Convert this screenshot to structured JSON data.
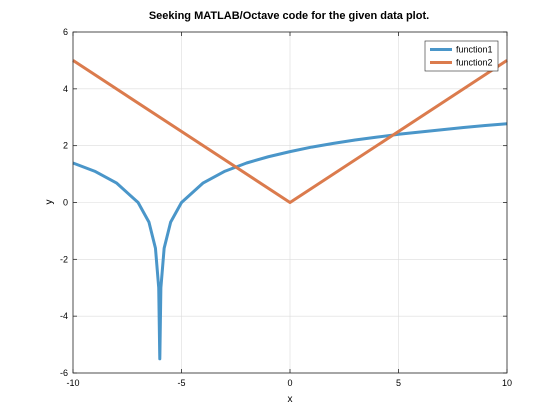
{
  "chart_data": {
    "type": "line",
    "title": "Seeking MATLAB/Octave code for the given data plot.",
    "xlabel": "x",
    "ylabel": "y",
    "xlim": [
      -10,
      10
    ],
    "ylim": [
      -6,
      6
    ],
    "xticks": [
      -10,
      -5,
      0,
      5,
      10
    ],
    "yticks": [
      -6,
      -4,
      -2,
      0,
      2,
      4,
      6
    ],
    "xtick_labels": [
      "-10",
      "-5",
      "0",
      "5",
      "10"
    ],
    "ytick_labels": [
      "-6",
      "-4",
      "-2",
      "0",
      "2",
      "4",
      "6"
    ],
    "grid": true,
    "legend_position": "top-right",
    "series": [
      {
        "name": "function1",
        "color": "#4a96c9",
        "x": [
          -10,
          -9,
          -8,
          -7,
          -6.5,
          -6.2,
          -6.05,
          -6.005,
          -6.0,
          -5.995,
          -5.95,
          -5.8,
          -5.5,
          -5,
          -4,
          -3,
          -2,
          -1,
          0,
          1,
          2,
          3,
          4,
          5,
          6,
          7,
          8,
          9,
          10
        ],
        "y": [
          1.39,
          1.1,
          0.69,
          0.0,
          -0.69,
          -1.61,
          -3.0,
          -5.3,
          -5.5,
          -5.3,
          -3.0,
          -1.61,
          -0.69,
          0.0,
          0.69,
          1.1,
          1.39,
          1.61,
          1.79,
          1.95,
          2.08,
          2.2,
          2.3,
          2.4,
          2.48,
          2.56,
          2.64,
          2.71,
          2.77
        ]
      },
      {
        "name": "function2",
        "color": "#db7b4d",
        "x": [
          -10,
          0,
          10
        ],
        "y": [
          5,
          0,
          5
        ]
      }
    ]
  }
}
